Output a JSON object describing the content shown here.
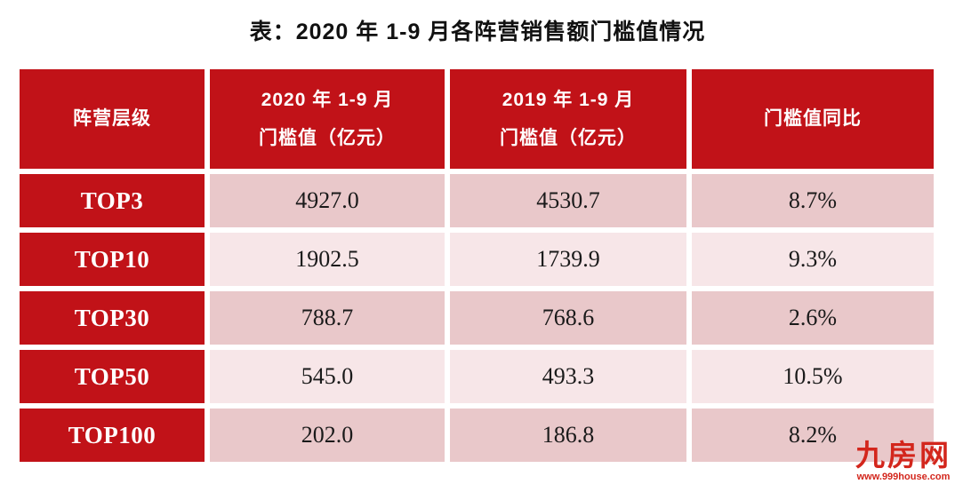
{
  "page_title": "表：2020 年 1-9 月各阵营销售额门槛值情况",
  "table": {
    "columns": [
      {
        "line1": "阵营层级",
        "line2": ""
      },
      {
        "line1": "2020 年 1-9 月",
        "line2": "门槛值（亿元）"
      },
      {
        "line1": "2019 年 1-9 月",
        "line2": "门槛值（亿元）"
      },
      {
        "line1": "门槛值同比",
        "line2": ""
      }
    ],
    "rows": [
      {
        "tier": "TOP3",
        "v2020": "4927.0",
        "v2019": "4530.7",
        "yoy": "8.7%"
      },
      {
        "tier": "TOP10",
        "v2020": "1902.5",
        "v2019": "1739.9",
        "yoy": "9.3%"
      },
      {
        "tier": "TOP30",
        "v2020": "788.7",
        "v2019": "768.6",
        "yoy": "2.6%"
      },
      {
        "tier": "TOP50",
        "v2020": "545.0",
        "v2019": "493.3",
        "yoy": "10.5%"
      },
      {
        "tier": "TOP100",
        "v2020": "202.0",
        "v2019": "186.8",
        "yoy": "8.2%"
      }
    ]
  },
  "watermark": {
    "logo_text": "九房网",
    "site_url": "www.999house.com"
  },
  "colors": {
    "accent_red": "#c11218",
    "row_pink_dark": "#e9c8ca",
    "row_pink_light": "#f7e6e8",
    "logo_red": "#d3261c",
    "value_text": "#1a1a1a",
    "gap_white": "#ffffff"
  },
  "chart_data": {
    "type": "table",
    "title": "表：2020 年 1-9 月各阵营销售额门槛值情况",
    "columns": [
      "阵营层级",
      "2020年1-9月门槛值（亿元）",
      "2019年1-9月门槛值（亿元）",
      "门槛值同比"
    ],
    "rows": [
      [
        "TOP3",
        4927.0,
        4530.7,
        "8.7%"
      ],
      [
        "TOP10",
        1902.5,
        1739.9,
        "9.3%"
      ],
      [
        "TOP30",
        788.7,
        768.6,
        "2.6%"
      ],
      [
        "TOP50",
        545.0,
        493.3,
        "10.5%"
      ],
      [
        "TOP100",
        202.0,
        186.8,
        "8.2%"
      ]
    ],
    "yoy_values_pct": [
      8.7,
      9.3,
      2.6,
      10.5,
      8.2
    ],
    "unit": "亿元"
  }
}
